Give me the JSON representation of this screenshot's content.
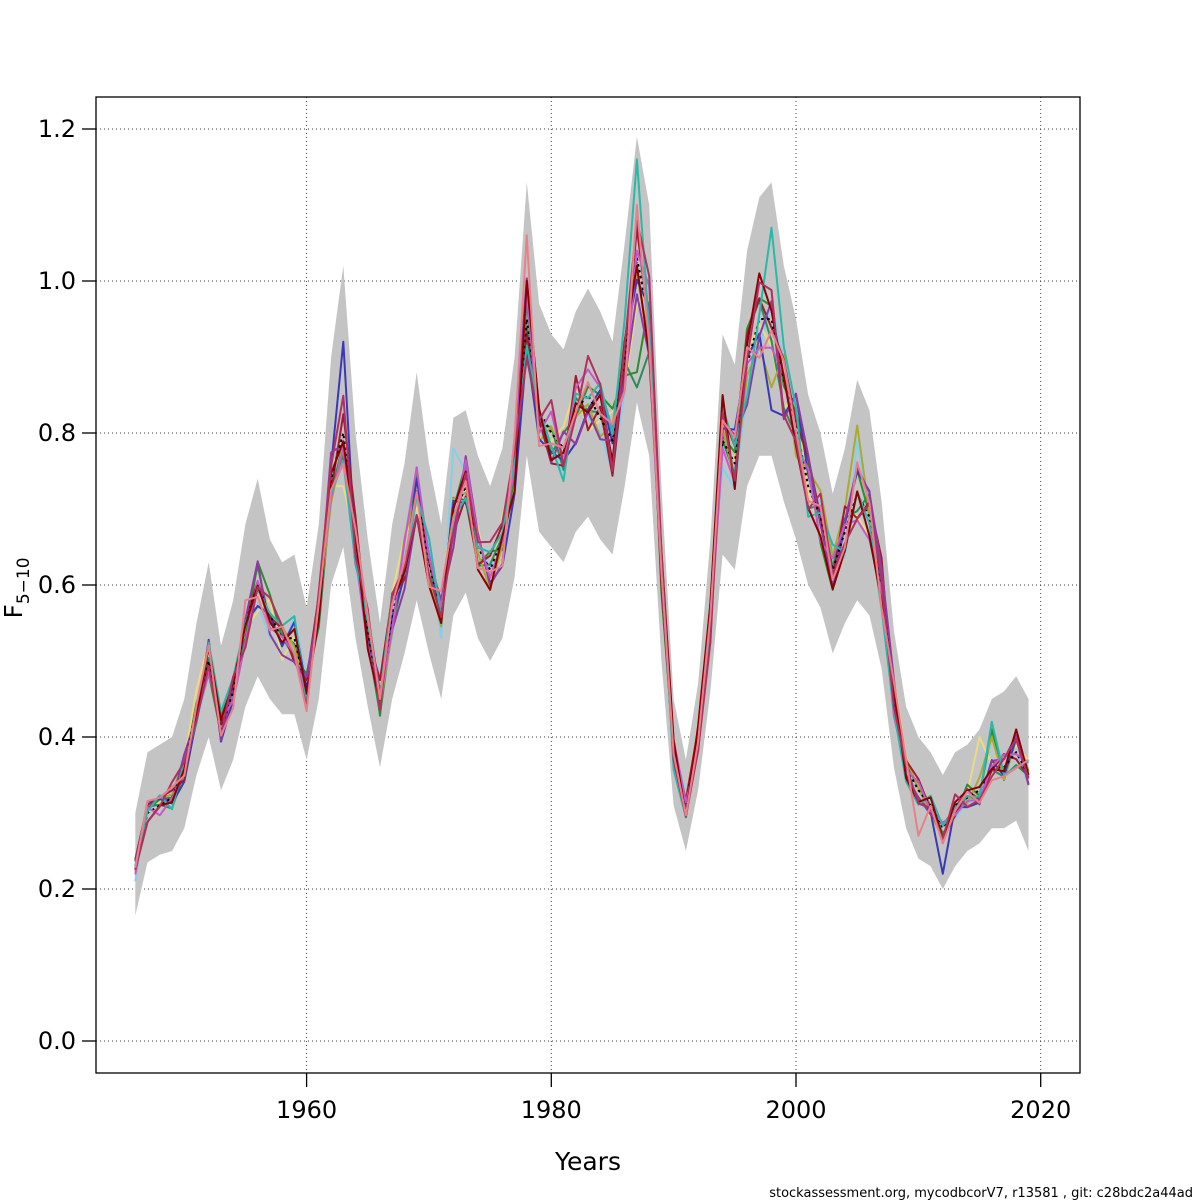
{
  "page": {
    "background": "#ffffff"
  },
  "footer": {
    "text": "stockassessment.org, mycodbcorV7, r13581 , git: c28bdc2a44ad"
  },
  "chart_data": {
    "type": "line",
    "title": "",
    "xlabel": "Years",
    "ylabel": "F_{5-10}",
    "ylabel_main": "F",
    "ylabel_sub": "5−10",
    "legend": "none",
    "grid": "dotted at ticks",
    "x_ticks": [
      1960,
      1980,
      2000,
      2020
    ],
    "y_ticks": [
      0.0,
      0.2,
      0.4,
      0.6,
      0.8,
      1.0,
      1.2
    ],
    "y_tick_labels": [
      "0.0",
      "0.2",
      "0.4",
      "0.6",
      "0.8",
      "1.0",
      "1.2"
    ],
    "x_axis_range": [
      1942.8,
      2023.2
    ],
    "y_axis_range": [
      -0.04,
      1.24
    ],
    "years": [
      1946,
      1947,
      1948,
      1949,
      1950,
      1951,
      1952,
      1953,
      1954,
      1955,
      1956,
      1957,
      1958,
      1959,
      1960,
      1961,
      1962,
      1963,
      1964,
      1965,
      1966,
      1967,
      1968,
      1969,
      1970,
      1971,
      1972,
      1973,
      1974,
      1975,
      1976,
      1977,
      1978,
      1979,
      1980,
      1981,
      1982,
      1983,
      1984,
      1985,
      1986,
      1987,
      1988,
      1989,
      1990,
      1991,
      1992,
      1993,
      1994,
      1995,
      1996,
      1997,
      1998,
      1999,
      2000,
      2001,
      2002,
      2003,
      2004,
      2005,
      2006,
      2007,
      2008,
      2009,
      2010,
      2011,
      2012,
      2013,
      2014,
      2015,
      2016,
      2017,
      2018,
      2019
    ],
    "base_values": [
      0.23,
      0.3,
      0.31,
      0.32,
      0.36,
      0.44,
      0.5,
      0.41,
      0.46,
      0.55,
      0.6,
      0.56,
      0.53,
      0.53,
      0.46,
      0.56,
      0.74,
      0.8,
      0.66,
      0.54,
      0.45,
      0.56,
      0.63,
      0.72,
      0.63,
      0.56,
      0.69,
      0.73,
      0.65,
      0.62,
      0.66,
      0.76,
      0.95,
      0.83,
      0.8,
      0.78,
      0.83,
      0.85,
      0.82,
      0.79,
      0.9,
      1.03,
      0.95,
      0.62,
      0.38,
      0.31,
      0.4,
      0.56,
      0.79,
      0.76,
      0.89,
      0.95,
      0.95,
      0.87,
      0.81,
      0.73,
      0.69,
      0.62,
      0.67,
      0.72,
      0.69,
      0.6,
      0.45,
      0.36,
      0.33,
      0.31,
      0.28,
      0.31,
      0.32,
      0.33,
      0.36,
      0.36,
      0.38,
      0.35
    ],
    "band": {
      "label": "confidence-band",
      "color": "#c4c4c4",
      "upper": [
        0.3,
        0.38,
        0.39,
        0.4,
        0.45,
        0.55,
        0.63,
        0.52,
        0.58,
        0.68,
        0.74,
        0.66,
        0.63,
        0.64,
        0.57,
        0.68,
        0.9,
        1.02,
        0.8,
        0.66,
        0.55,
        0.68,
        0.76,
        0.88,
        0.76,
        0.68,
        0.82,
        0.83,
        0.77,
        0.73,
        0.78,
        0.9,
        1.13,
        0.97,
        0.93,
        0.91,
        0.96,
        0.99,
        0.96,
        0.92,
        1.05,
        1.19,
        1.1,
        0.73,
        0.45,
        0.37,
        0.47,
        0.66,
        0.93,
        0.89,
        1.04,
        1.11,
        1.13,
        1.02,
        0.95,
        0.85,
        0.8,
        0.72,
        0.78,
        0.87,
        0.83,
        0.71,
        0.54,
        0.44,
        0.4,
        0.38,
        0.35,
        0.38,
        0.39,
        0.41,
        0.45,
        0.46,
        0.48,
        0.45
      ],
      "lower": [
        0.165,
        0.235,
        0.245,
        0.25,
        0.28,
        0.35,
        0.4,
        0.33,
        0.37,
        0.44,
        0.48,
        0.45,
        0.43,
        0.43,
        0.37,
        0.45,
        0.6,
        0.65,
        0.53,
        0.44,
        0.36,
        0.45,
        0.51,
        0.58,
        0.51,
        0.45,
        0.56,
        0.59,
        0.53,
        0.5,
        0.53,
        0.61,
        0.77,
        0.67,
        0.65,
        0.63,
        0.67,
        0.69,
        0.66,
        0.64,
        0.73,
        0.84,
        0.77,
        0.5,
        0.31,
        0.25,
        0.33,
        0.46,
        0.64,
        0.62,
        0.73,
        0.77,
        0.77,
        0.71,
        0.66,
        0.6,
        0.57,
        0.51,
        0.55,
        0.58,
        0.56,
        0.49,
        0.36,
        0.28,
        0.24,
        0.23,
        0.2,
        0.23,
        0.25,
        0.26,
        0.28,
        0.28,
        0.29,
        0.25
      ]
    },
    "series": [
      {
        "name": "run-skyblue",
        "color": "#87ceeb",
        "seed": 6,
        "amp": 0.055,
        "anchors": {
          "1946": 0.21,
          "1972": 0.78,
          "2005": 0.79,
          "2016": 0.4
        }
      },
      {
        "name": "run-khaki",
        "color": "#e8dc82",
        "seed": 8,
        "amp": 0.06,
        "anchors": {
          "1963": 0.73,
          "1987": 0.97,
          "2015": 0.4
        }
      },
      {
        "name": "run-seagreen",
        "color": "#2e8b57",
        "seed": 4,
        "amp": 0.05,
        "anchors": {
          "1987": 0.86
        }
      },
      {
        "name": "run-green",
        "color": "#2e8b2e",
        "seed": 3,
        "amp": 0.055,
        "anchors": {
          "1987": 0.88,
          "2016": 0.41
        }
      },
      {
        "name": "run-olive",
        "color": "#aaaa33",
        "seed": 9,
        "amp": 0.055,
        "anchors": {
          "1998": 0.86,
          "2005": 0.81,
          "2016": 0.4
        }
      },
      {
        "name": "run-royalblue",
        "color": "#3939b8",
        "seed": 7,
        "amp": 0.06,
        "anchors": {
          "1963": 0.92,
          "1998": 0.83,
          "2012": 0.22
        }
      },
      {
        "name": "run-brick",
        "color": "#9e1b32",
        "seed": 2,
        "amp": 0.06,
        "anchors": {
          "1996": 0.93
        }
      },
      {
        "name": "run-purple",
        "color": "#8e3a9e",
        "seed": 11,
        "amp": 0.06,
        "anchors": {}
      },
      {
        "name": "base-run",
        "color": "#000000",
        "seed": 0,
        "amp": 0,
        "dash": "2.5 3.5",
        "anchors": {}
      },
      {
        "name": "run-orchid",
        "color": "#c45ac8",
        "seed": 10,
        "amp": 0.05,
        "anchors": {
          "1987": 1.04
        }
      },
      {
        "name": "run-teal",
        "color": "#2ab8a8",
        "seed": 5,
        "amp": 0.06,
        "anchors": {
          "1987": 1.16,
          "1998": 1.07,
          "2016": 0.42
        }
      },
      {
        "name": "run-darkred",
        "color": "#8b0000",
        "seed": 1,
        "amp": 0.05,
        "anchors": {
          "1978": 1.0,
          "1987": 1.02,
          "1994": 0.85,
          "1997": 1.01,
          "2018": 0.41
        }
      },
      {
        "name": "run-violetred",
        "color": "#b03060",
        "seed": 12,
        "amp": 0.065,
        "anchors": {
          "1990": 0.37,
          "2002": 0.72
        }
      },
      {
        "name": "run-salmon",
        "color": "#e8808a",
        "seed": 13,
        "amp": 0.06,
        "anchors": {
          "1978": 1.06,
          "1987": 1.1,
          "2010": 0.27,
          "2012": 0.26,
          "2019": 0.37
        }
      }
    ],
    "styles": {
      "grid_color": "#3c3c3c",
      "axis_color": "#000000",
      "line_width": 2,
      "band_color": "#c4c4c4"
    }
  }
}
